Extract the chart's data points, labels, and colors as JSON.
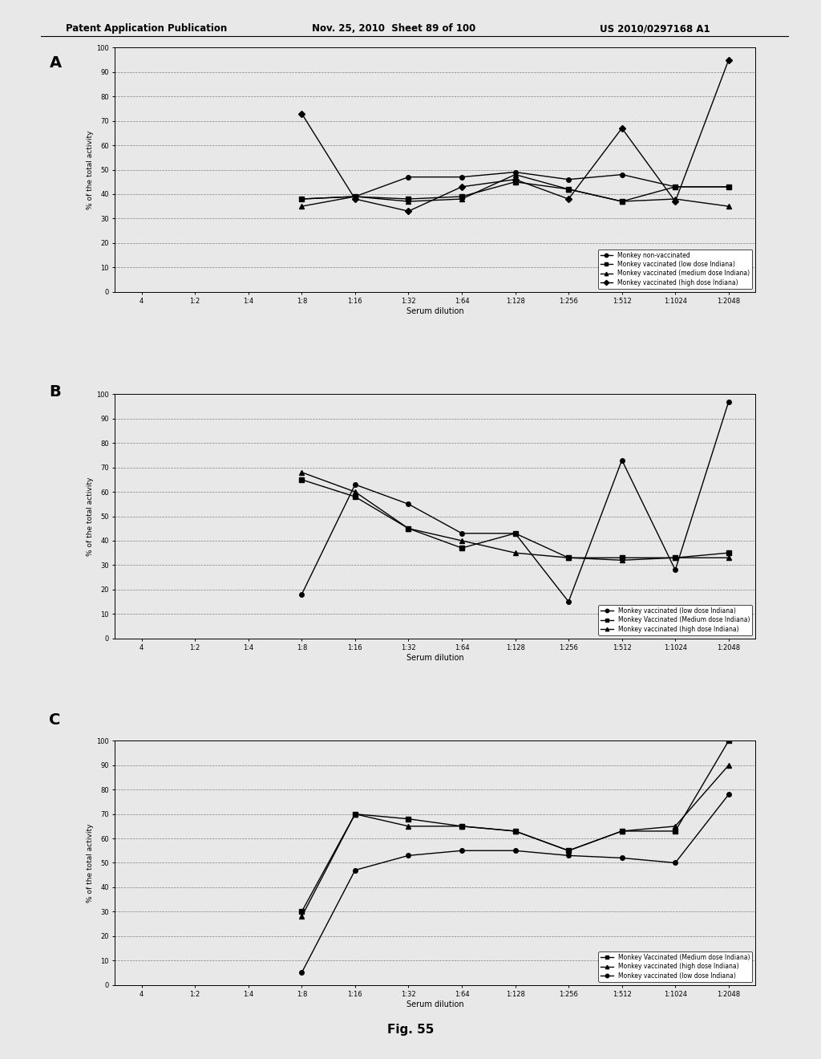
{
  "header_left": "Patent Application Publication",
  "header_mid": "Nov. 25, 2010  Sheet 89 of 100",
  "header_right": "US 2010/0297168 A1",
  "fig_label": "Fig. 55",
  "x_labels": [
    "4",
    "1:2",
    "1:4",
    "1:8",
    "1:16",
    "1:32",
    "1:64",
    "1:128",
    "1:256",
    "1:512",
    "1:1024",
    "1:2048"
  ],
  "x_values": [
    0,
    1,
    2,
    3,
    4,
    5,
    6,
    7,
    8,
    9,
    10,
    11
  ],
  "chartA": {
    "ylabel": "% of the total activity",
    "xlabel": "Serum dilution",
    "ylim": [
      0,
      100
    ],
    "yticks": [
      0,
      10,
      20,
      30,
      40,
      50,
      60,
      70,
      80,
      90,
      100
    ],
    "legend_labels": [
      "Monkey non-vaccinated",
      "Monkey vaccinated (low dose Indiana)",
      "Monkey vaccinated (medium dose Indiana)",
      "Monkey vaccinated (high dose Indiana)"
    ],
    "series": [
      {
        "marker": "o",
        "values": [
          null,
          null,
          null,
          38,
          39,
          47,
          47,
          49,
          46,
          48,
          43,
          43
        ]
      },
      {
        "marker": "s",
        "values": [
          null,
          null,
          null,
          38,
          39,
          38,
          39,
          45,
          42,
          37,
          43,
          43
        ]
      },
      {
        "marker": "^",
        "values": [
          null,
          null,
          null,
          35,
          39,
          37,
          38,
          48,
          42,
          37,
          38,
          35
        ]
      },
      {
        "marker": "D",
        "values": [
          null,
          null,
          null,
          73,
          38,
          33,
          43,
          46,
          38,
          67,
          37,
          95
        ]
      }
    ]
  },
  "chartB": {
    "ylabel": "% of the total activity",
    "xlabel": "Serum dilution",
    "ylim": [
      0,
      100
    ],
    "yticks": [
      0,
      10,
      20,
      30,
      40,
      50,
      60,
      70,
      80,
      90,
      100
    ],
    "legend_labels": [
      "Monkey vaccinated (low dose Indiana)",
      "Monkey Vaccinated (Medium dose Indiana)",
      "Monkey vaccinated (high dose Indiana)"
    ],
    "series": [
      {
        "marker": "o",
        "values": [
          null,
          null,
          null,
          18,
          63,
          55,
          43,
          43,
          15,
          73,
          28,
          97
        ]
      },
      {
        "marker": "s",
        "values": [
          null,
          null,
          null,
          65,
          58,
          45,
          37,
          43,
          33,
          33,
          33,
          35
        ]
      },
      {
        "marker": "^",
        "values": [
          null,
          null,
          null,
          68,
          60,
          45,
          40,
          35,
          33,
          32,
          33,
          33
        ]
      }
    ]
  },
  "chartC": {
    "ylabel": "% of the total activity",
    "xlabel": "Serum dilution",
    "ylim": [
      0,
      100
    ],
    "yticks": [
      0,
      10,
      20,
      30,
      40,
      50,
      60,
      70,
      80,
      90,
      100
    ],
    "legend_labels": [
      "Monkey Vaccinated (Medium dose Indiana)",
      "Monkey vaccinated (high dose Indiana)",
      "Monkey vaccinated (low dose Indiana)"
    ],
    "series": [
      {
        "marker": "s",
        "values": [
          null,
          null,
          null,
          30,
          70,
          68,
          65,
          63,
          55,
          63,
          63,
          100
        ]
      },
      {
        "marker": "^",
        "values": [
          null,
          null,
          null,
          28,
          70,
          65,
          65,
          63,
          55,
          63,
          65,
          90
        ]
      },
      {
        "marker": "o",
        "values": [
          null,
          null,
          null,
          5,
          47,
          53,
          55,
          55,
          53,
          52,
          50,
          78
        ]
      }
    ]
  },
  "background_color": "#f0f0f0",
  "line_color": "#000000",
  "grid_color": "#888888"
}
